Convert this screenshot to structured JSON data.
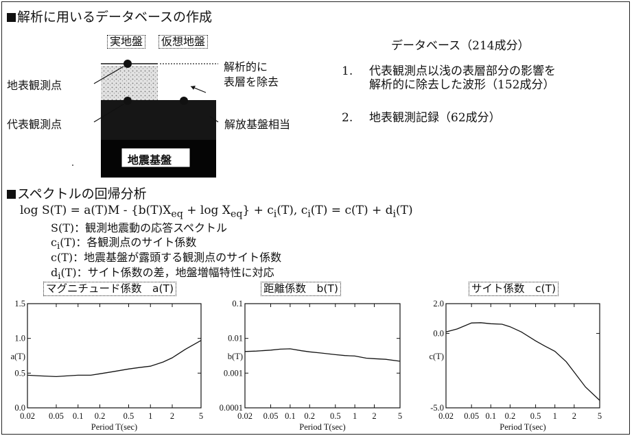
{
  "section1": {
    "heading": "解析に用いるデータベースの作成",
    "real_ground_label": "実地盤",
    "virtual_ground_label": "仮想地盤",
    "surface_station_label": "地表観測点",
    "representative_station_label": "代表観測点",
    "analytic_removal_line1": "解析的に",
    "analytic_removal_line2": "表層を除去",
    "bedrock_equiv_label": "解放基盤相当",
    "seismic_bedrock_label": "地震基盤"
  },
  "database": {
    "title": "データベース（214成分）",
    "items": [
      {
        "num": "1.",
        "line1": "代表観測点以浅の表層部分の影響を",
        "line2": "解析的に除去した波形（152成分）"
      },
      {
        "num": "2.",
        "line1": "地表観測記録（62成分）",
        "line2": ""
      }
    ]
  },
  "section2": {
    "heading": "スペクトルの回帰分析",
    "equation": {
      "p1": "log S(T) = a(T)M - {b(T)X",
      "sub1": "eq",
      "p2": " + log X",
      "sub2": "eq",
      "p3": "} + c",
      "sub3": "i",
      "p4": "(T), c",
      "sub4": "i",
      "p5": "(T) = c(T) + d",
      "sub5": "i",
      "p6": "(T)"
    },
    "definitions": [
      {
        "sym": "S(T)",
        "sub": "",
        "sym_tail": "",
        "desc": "：観測地震動の応答スペクトル"
      },
      {
        "sym": "c",
        "sub": "i",
        "sym_tail": "(T)",
        "desc": "：各観測点のサイト係数"
      },
      {
        "sym": "c(T)",
        "sub": "",
        "sym_tail": "",
        "desc": "：地震基盤が露頭する観測点のサイト係数"
      },
      {
        "sym": "d",
        "sub": "i",
        "sym_tail": "(T)",
        "desc": "：サイト係数の差，地盤増幅特性に対応"
      }
    ]
  },
  "chart_data": [
    {
      "type": "line",
      "title": "マグニチュード係数　a(T)",
      "xlabel": "Period T(sec)",
      "ylabel": "a(T)",
      "x_scale": "log",
      "y_scale": "linear",
      "xlim": [
        0.02,
        5
      ],
      "ylim": [
        0,
        1.5
      ],
      "x_ticks": [
        "0.02",
        "0.05",
        "0.1",
        "0.2",
        "0.5",
        "1",
        "2",
        "5"
      ],
      "y_ticks": [
        "0.0",
        "0.5",
        "1.0",
        "1.5"
      ],
      "x": [
        0.02,
        0.03,
        0.05,
        0.07,
        0.1,
        0.15,
        0.2,
        0.3,
        0.5,
        0.7,
        1,
        1.5,
        2,
        3,
        5
      ],
      "y": [
        0.47,
        0.46,
        0.45,
        0.46,
        0.47,
        0.47,
        0.49,
        0.52,
        0.56,
        0.58,
        0.6,
        0.66,
        0.72,
        0.84,
        0.97
      ]
    },
    {
      "type": "line",
      "title": "距離係数　b(T)",
      "xlabel": "Period T(sec)",
      "ylabel": "b(T)",
      "x_scale": "log",
      "y_scale": "log",
      "xlim": [
        0.02,
        5
      ],
      "ylim": [
        0.0001,
        0.1
      ],
      "x_ticks": [
        "0.02",
        "0.05",
        "0.1",
        "0.2",
        "0.5",
        "1",
        "2",
        "5"
      ],
      "y_ticks": [
        "0.0001",
        "0.001",
        "0.01",
        "0.1"
      ],
      "x": [
        0.02,
        0.03,
        0.05,
        0.07,
        0.1,
        0.15,
        0.2,
        0.3,
        0.5,
        0.7,
        1,
        1.5,
        2,
        3,
        5
      ],
      "y": [
        0.0042,
        0.0043,
        0.0046,
        0.0049,
        0.005,
        0.0044,
        0.0041,
        0.0038,
        0.0034,
        0.0032,
        0.0031,
        0.0027,
        0.0026,
        0.0025,
        0.0022
      ]
    },
    {
      "type": "line",
      "title": "サイト係数　c(T)",
      "xlabel": "Period T(sec)",
      "ylabel": "c(T)",
      "x_scale": "log",
      "y_scale": "linear",
      "xlim": [
        0.02,
        5
      ],
      "ylim": [
        -5.0,
        2.0
      ],
      "x_ticks": [
        "0.02",
        "0.05",
        "0.1",
        "0.2",
        "0.5",
        "1",
        "2",
        "5"
      ],
      "y_ticks": [
        "-5.0",
        "0.0",
        "2.0"
      ],
      "x": [
        0.02,
        0.03,
        0.05,
        0.07,
        0.1,
        0.15,
        0.2,
        0.3,
        0.5,
        0.7,
        1,
        1.5,
        2,
        3,
        5
      ],
      "y": [
        0.1,
        0.3,
        0.7,
        0.72,
        0.65,
        0.62,
        0.45,
        0.1,
        -0.5,
        -0.85,
        -1.2,
        -1.9,
        -2.6,
        -3.6,
        -4.5
      ]
    }
  ]
}
